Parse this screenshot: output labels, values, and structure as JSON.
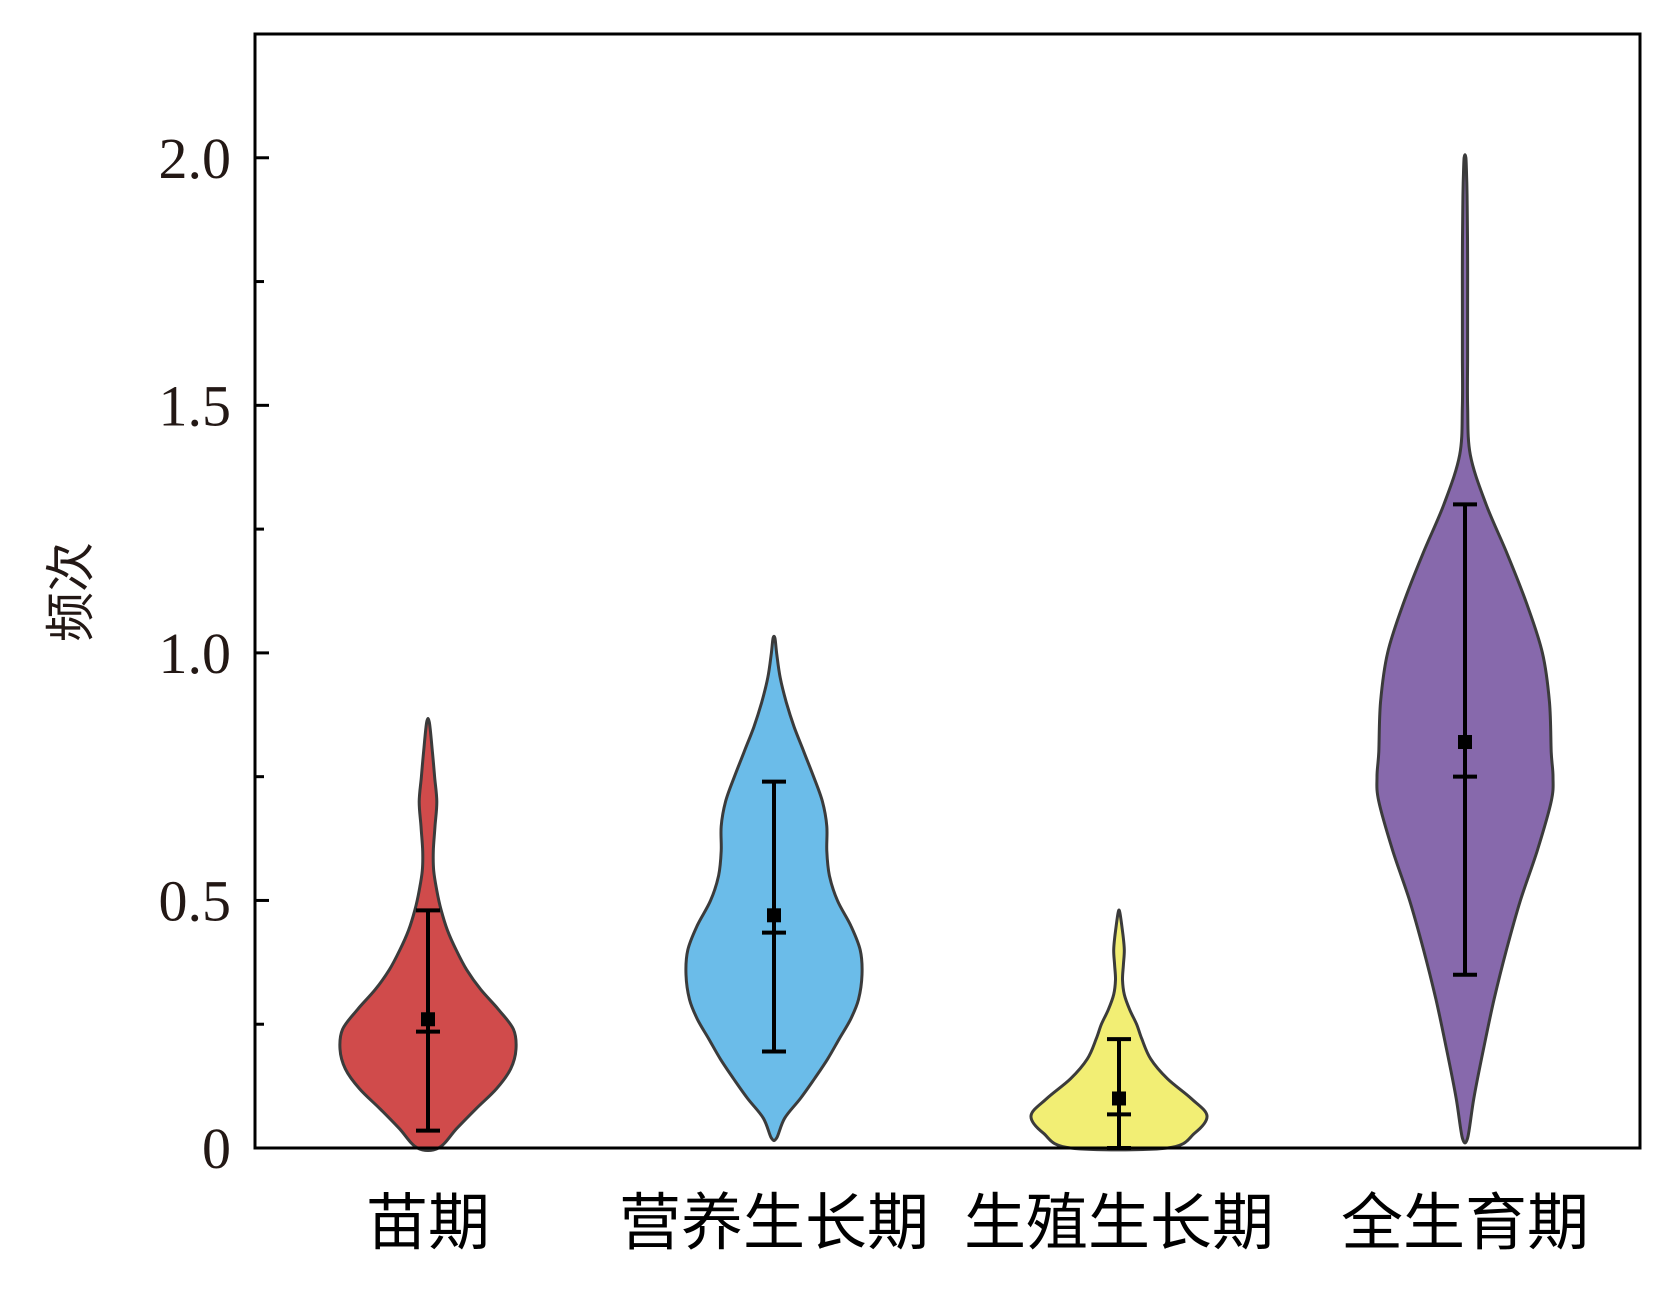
{
  "chart_data": {
    "type": "violin",
    "title": "",
    "xlabel": "",
    "ylabel": "频次",
    "ylim": [
      0,
      2.25
    ],
    "yticks": [
      0,
      0.5,
      1.0,
      1.5,
      2.0
    ],
    "ytick_labels": [
      "0",
      "0.5",
      "1.0",
      "1.5",
      "2.0"
    ],
    "yminor_ticks": [
      0.25,
      0.75,
      1.25,
      1.75
    ],
    "grid": false,
    "legend": "none",
    "categories": [
      "苗期",
      "营养生长期",
      "生殖生长期",
      "全生育期"
    ],
    "series": [
      {
        "color": "#D04B4B",
        "min": 0.0,
        "max": 0.86,
        "mean": 0.26,
        "median": 0.235,
        "whisker_low": 0.035,
        "whisker_high": 0.48,
        "density": [
          [
            0.0,
            0.12
          ],
          [
            0.04,
            0.33
          ],
          [
            0.08,
            0.55
          ],
          [
            0.12,
            0.78
          ],
          [
            0.16,
            0.94
          ],
          [
            0.2,
            1.0
          ],
          [
            0.24,
            0.97
          ],
          [
            0.28,
            0.8
          ],
          [
            0.32,
            0.6
          ],
          [
            0.36,
            0.44
          ],
          [
            0.4,
            0.32
          ],
          [
            0.44,
            0.22
          ],
          [
            0.48,
            0.15
          ],
          [
            0.52,
            0.1
          ],
          [
            0.56,
            0.065
          ],
          [
            0.6,
            0.06
          ],
          [
            0.65,
            0.08
          ],
          [
            0.7,
            0.1
          ],
          [
            0.75,
            0.075
          ],
          [
            0.8,
            0.05
          ],
          [
            0.86,
            0.015
          ]
        ]
      },
      {
        "color": "#6BBCE9",
        "min": 0.02,
        "max": 1.03,
        "mean": 0.47,
        "median": 0.435,
        "whisker_low": 0.195,
        "whisker_high": 0.74,
        "density": [
          [
            0.02,
            0.03
          ],
          [
            0.06,
            0.12
          ],
          [
            0.1,
            0.3
          ],
          [
            0.14,
            0.46
          ],
          [
            0.18,
            0.61
          ],
          [
            0.22,
            0.74
          ],
          [
            0.26,
            0.87
          ],
          [
            0.3,
            0.96
          ],
          [
            0.35,
            1.0
          ],
          [
            0.4,
            0.98
          ],
          [
            0.45,
            0.87
          ],
          [
            0.5,
            0.72
          ],
          [
            0.55,
            0.63
          ],
          [
            0.6,
            0.6
          ],
          [
            0.65,
            0.6
          ],
          [
            0.7,
            0.55
          ],
          [
            0.75,
            0.45
          ],
          [
            0.8,
            0.34
          ],
          [
            0.85,
            0.23
          ],
          [
            0.9,
            0.14
          ],
          [
            0.95,
            0.07
          ],
          [
            1.0,
            0.03
          ],
          [
            1.03,
            0.01
          ]
        ]
      },
      {
        "color": "#F2EE74",
        "min": 0.0,
        "max": 0.475,
        "mean": 0.1,
        "median": 0.068,
        "whisker_low": 0.0,
        "whisker_high": 0.22,
        "density": [
          [
            0.0,
            0.55
          ],
          [
            0.03,
            0.86
          ],
          [
            0.065,
            1.0
          ],
          [
            0.1,
            0.82
          ],
          [
            0.14,
            0.55
          ],
          [
            0.18,
            0.36
          ],
          [
            0.22,
            0.26
          ],
          [
            0.25,
            0.2
          ],
          [
            0.28,
            0.12
          ],
          [
            0.31,
            0.06
          ],
          [
            0.34,
            0.04
          ],
          [
            0.37,
            0.05
          ],
          [
            0.4,
            0.06
          ],
          [
            0.43,
            0.045
          ],
          [
            0.475,
            0.01
          ]
        ]
      },
      {
        "color": "#8769AC",
        "min": 0.02,
        "max": 2.0,
        "mean": 0.82,
        "median": 0.75,
        "whisker_low": 0.35,
        "whisker_high": 1.3,
        "density": [
          [
            0.02,
            0.03
          ],
          [
            0.1,
            0.1
          ],
          [
            0.2,
            0.21
          ],
          [
            0.3,
            0.33
          ],
          [
            0.4,
            0.47
          ],
          [
            0.5,
            0.63
          ],
          [
            0.6,
            0.82
          ],
          [
            0.7,
            0.98
          ],
          [
            0.75,
            1.0
          ],
          [
            0.8,
            0.98
          ],
          [
            0.9,
            0.96
          ],
          [
            1.0,
            0.88
          ],
          [
            1.1,
            0.7
          ],
          [
            1.2,
            0.48
          ],
          [
            1.3,
            0.24
          ],
          [
            1.4,
            0.06
          ],
          [
            1.5,
            0.03
          ],
          [
            1.6,
            0.03
          ],
          [
            1.7,
            0.03
          ],
          [
            1.8,
            0.03
          ],
          [
            1.9,
            0.025
          ],
          [
            1.95,
            0.02
          ],
          [
            2.0,
            0.01
          ]
        ]
      }
    ]
  }
}
